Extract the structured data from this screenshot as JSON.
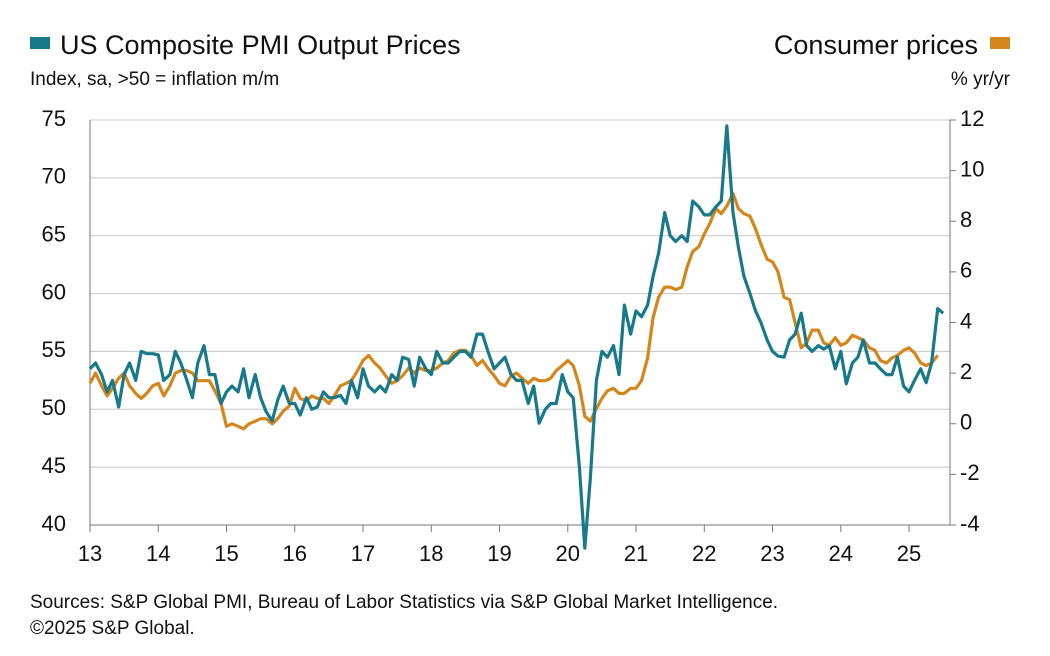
{
  "chart_data": {
    "type": "line",
    "y_label": "Index, sa, >50 = inflation m/m",
    "y2_label": "% yr/yr",
    "source": [
      "Sources: S&P Global PMI, Bureau of Labor Statistics via S&P Global Market Intelligence.",
      "©2025 S&P Global."
    ],
    "x": [
      13,
      13.08,
      13.17,
      13.25,
      13.33,
      13.42,
      13.5,
      13.58,
      13.67,
      13.75,
      13.83,
      13.92,
      14,
      14.08,
      14.17,
      14.25,
      14.33,
      14.42,
      14.5,
      14.58,
      14.67,
      14.75,
      14.83,
      14.92,
      15,
      15.08,
      15.17,
      15.25,
      15.33,
      15.42,
      15.5,
      15.58,
      15.67,
      15.75,
      15.83,
      15.92,
      16,
      16.08,
      16.17,
      16.25,
      16.33,
      16.42,
      16.5,
      16.58,
      16.67,
      16.75,
      16.83,
      16.92,
      17,
      17.08,
      17.17,
      17.25,
      17.33,
      17.42,
      17.5,
      17.58,
      17.67,
      17.75,
      17.83,
      17.92,
      18,
      18.08,
      18.17,
      18.25,
      18.33,
      18.42,
      18.5,
      18.58,
      18.67,
      18.75,
      18.83,
      18.92,
      19,
      19.08,
      19.17,
      19.25,
      19.33,
      19.42,
      19.5,
      19.58,
      19.67,
      19.75,
      19.83,
      19.92,
      20,
      20.08,
      20.17,
      20.25,
      20.33,
      20.42,
      20.5,
      20.58,
      20.67,
      20.75,
      20.83,
      20.92,
      21,
      21.08,
      21.17,
      21.25,
      21.33,
      21.42,
      21.5,
      21.58,
      21.67,
      21.75,
      21.83,
      21.92,
      22,
      22.08,
      22.17,
      22.25,
      22.33,
      22.42,
      22.5,
      22.58,
      22.67,
      22.75,
      22.83,
      22.92,
      23,
      23.08,
      23.17,
      23.25,
      23.33,
      23.42,
      23.5,
      23.58,
      23.67,
      23.75,
      23.83,
      23.92,
      24,
      24.08,
      24.17,
      24.25,
      24.33,
      24.42,
      24.5,
      24.58,
      24.67,
      24.75,
      24.83,
      24.92,
      25,
      25.08,
      25.17,
      25.25,
      25.33,
      25.42,
      25.5
    ],
    "series": [
      {
        "name": "US Composite PMI Output Prices",
        "color": "#17798a",
        "values": [
          53.5,
          54,
          53,
          51.5,
          52.5,
          50.2,
          53,
          54,
          52.5,
          55,
          54.8,
          54.8,
          54.7,
          52.5,
          53,
          55,
          54,
          52.5,
          51,
          54,
          55.5,
          53,
          53,
          50.5,
          51.5,
          52,
          51.5,
          53.5,
          51,
          53,
          51,
          49.8,
          49,
          50.8,
          52,
          50.5,
          50.5,
          49.5,
          51,
          50,
          50.2,
          51.5,
          51,
          51,
          51.2,
          50.5,
          52.5,
          51,
          53.5,
          52,
          51.5,
          52,
          51.5,
          53,
          52.5,
          54.5,
          54.3,
          52,
          54.5,
          53.5,
          53,
          55,
          54,
          54,
          54.5,
          55,
          55,
          54.5,
          56.5,
          56.5,
          55,
          53.5,
          54,
          54.5,
          53,
          52.5,
          52.5,
          50.5,
          52,
          48.8,
          50,
          50.5,
          50.5,
          53,
          51.5,
          51,
          45,
          38,
          44,
          52.5,
          55,
          54.5,
          55.5,
          53,
          59,
          56.5,
          58.5,
          58,
          59,
          61.5,
          63.5,
          67,
          65,
          64.5,
          65,
          64.5,
          68,
          67.5,
          66.8,
          66.8,
          67.5,
          68,
          74.5,
          67,
          64,
          61.5,
          60,
          58.5,
          57.5,
          56,
          55,
          54.6,
          54.5,
          56,
          56.5,
          58.3,
          55.5,
          55,
          55.5,
          55.2,
          55.5,
          53.5,
          55,
          52.2,
          54,
          54.5,
          56,
          54,
          54,
          53.5,
          53,
          53,
          54.5,
          52,
          51.5,
          52.5,
          53.5,
          52.3,
          54,
          58.7,
          58.3
        ]
      },
      {
        "name": "Consumer prices",
        "color": "#d4861a",
        "axis": "y2",
        "values": [
          1.6,
          2.0,
          1.5,
          1.1,
          1.4,
          1.8,
          2.0,
          1.5,
          1.2,
          1.0,
          1.2,
          1.5,
          1.6,
          1.1,
          1.5,
          2.0,
          2.1,
          2.1,
          2.0,
          1.7,
          1.7,
          1.7,
          1.3,
          0.8,
          -0.1,
          0.0,
          -0.1,
          -0.2,
          0.0,
          0.1,
          0.2,
          0.2,
          0.0,
          0.2,
          0.5,
          0.7,
          1.4,
          1.0,
          0.9,
          1.1,
          1.0,
          1.0,
          0.8,
          1.1,
          1.5,
          1.6,
          1.7,
          2.1,
          2.5,
          2.7,
          2.4,
          2.2,
          1.9,
          1.6,
          1.7,
          1.9,
          2.2,
          2.0,
          2.2,
          2.1,
          2.1,
          2.2,
          2.4,
          2.5,
          2.8,
          2.9,
          2.9,
          2.7,
          2.3,
          2.5,
          2.2,
          1.9,
          1.6,
          1.5,
          1.9,
          2.0,
          1.8,
          1.6,
          1.8,
          1.7,
          1.7,
          1.8,
          2.1,
          2.3,
          2.5,
          2.3,
          1.5,
          0.3,
          0.1,
          0.6,
          1.0,
          1.3,
          1.4,
          1.2,
          1.2,
          1.4,
          1.4,
          1.7,
          2.6,
          4.2,
          5.0,
          5.4,
          5.4,
          5.3,
          5.4,
          6.2,
          6.8,
          7.0,
          7.5,
          7.9,
          8.5,
          8.3,
          8.6,
          9.1,
          8.5,
          8.3,
          8.2,
          7.7,
          7.1,
          6.5,
          6.4,
          6.0,
          5.0,
          4.9,
          4.0,
          3.0,
          3.2,
          3.7,
          3.7,
          3.2,
          3.1,
          3.4,
          3.1,
          3.2,
          3.5,
          3.4,
          3.3,
          3.0,
          2.9,
          2.5,
          2.4,
          2.6,
          2.7,
          2.9,
          3.0,
          2.8,
          2.4,
          2.3,
          2.4,
          2.7,
          null
        ]
      }
    ],
    "xlim": [
      13,
      25.6
    ],
    "xticks": [
      13,
      14,
      15,
      16,
      17,
      18,
      19,
      20,
      21,
      22,
      23,
      24,
      25
    ],
    "ylim": [
      40,
      75
    ],
    "yticks": [
      40,
      45,
      50,
      55,
      60,
      65,
      70,
      75
    ],
    "y2lim": [
      -4,
      12
    ],
    "y2ticks": [
      -4,
      -2,
      0,
      2,
      4,
      6,
      8,
      10,
      12
    ],
    "grid": true
  }
}
